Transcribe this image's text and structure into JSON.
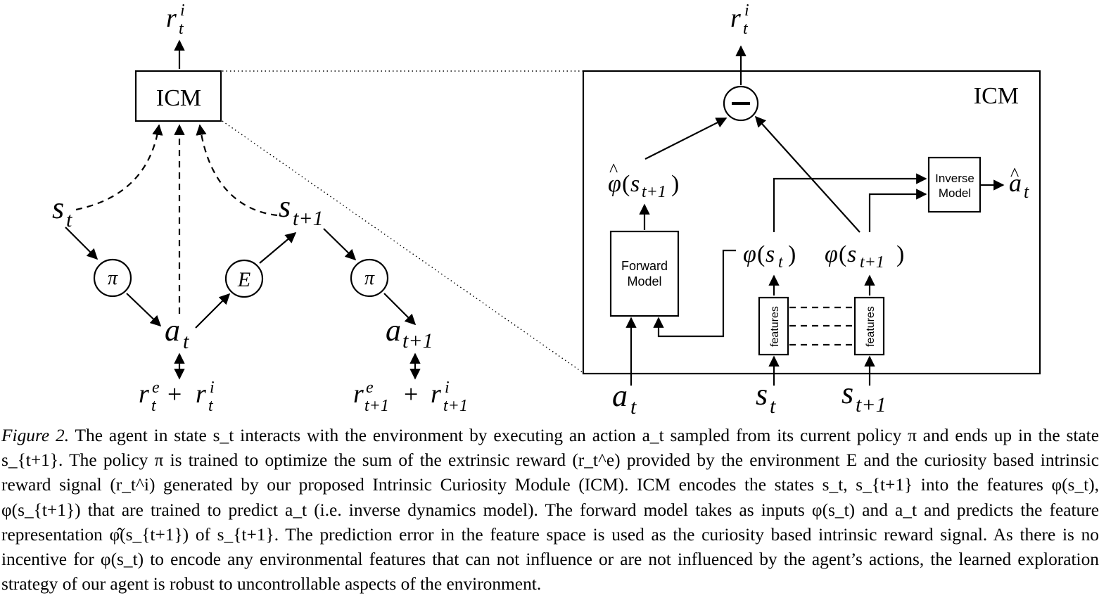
{
  "left_diagram": {
    "icm_box_label": "ICM",
    "top_reward": "r_t^i",
    "states": [
      "s_t",
      "s_{t+1}"
    ],
    "policy_nodes": [
      "π",
      "π"
    ],
    "environment_node": "E",
    "actions": [
      "a_t",
      "a_{t+1}"
    ],
    "rewards": [
      "r_t^e + r_t^i",
      "r_{t+1}^e + r_{t+1}^i"
    ]
  },
  "icm_detail": {
    "title": "ICM",
    "output_reward": "r_t^i",
    "subtract_symbol": "−",
    "forward_model_label": [
      "Forward",
      "Model"
    ],
    "inverse_model_label": [
      "Inverse",
      "Model"
    ],
    "feature_block_label": "features",
    "predicted_feature": "φ̂(s_{t+1})",
    "features": [
      "φ(s_t)",
      "φ(s_{t+1})"
    ],
    "predicted_action": "â_t",
    "inputs": [
      "a_t",
      "s_t",
      "s_{t+1}"
    ]
  },
  "caption": {
    "figure_label": "Figure 2.",
    "text": "The agent in state s_t interacts with the environment by executing an action a_t sampled from its current policy π and ends up in the state s_{t+1}. The policy π is trained to optimize the sum of the extrinsic reward (r_t^e) provided by the environment E and the curiosity based intrinsic reward signal (r_t^i) generated by our proposed Intrinsic Curiosity Module (ICM). ICM encodes the states s_t, s_{t+1} into the features φ(s_t), φ(s_{t+1}) that are trained to predict a_t (i.e. inverse dynamics model). The forward model takes as inputs φ(s_t) and a_t and predicts the feature representation φ̂(s_{t+1}) of s_{t+1}. The prediction error in the feature space is used as the curiosity based intrinsic reward signal. As there is no incentive for φ(s_t) to encode any environmental features that can not influence or are not influenced by the agent’s actions, the learned exploration strategy of our agent is robust to uncontrollable aspects of the environment."
  }
}
